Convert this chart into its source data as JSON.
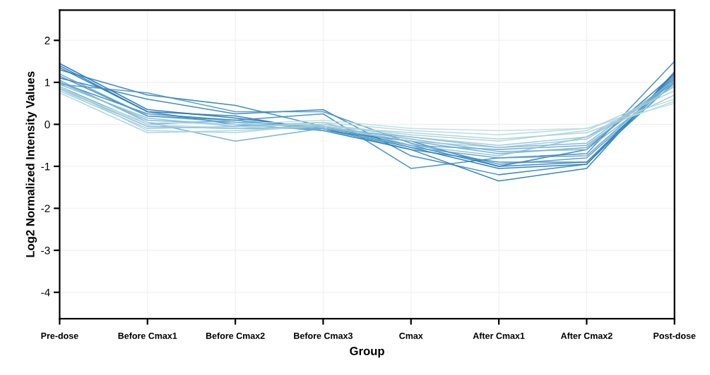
{
  "chart_data": {
    "type": "line",
    "xlabel": "Group",
    "ylabel": "Log2 Normalized Intensity Values",
    "categories": [
      "Pre-dose",
      "Before Cmax1",
      "Before Cmax2",
      "Before Cmax3",
      "Cmax",
      "After Cmax1",
      "After Cmax2",
      "Post-dose"
    ],
    "ylim": [
      -4.63,
      2.72
    ],
    "yticks": [
      -4,
      -3,
      -2,
      -1,
      0,
      1,
      2
    ],
    "grid": true,
    "marker": "none",
    "line_style": "solid",
    "series": [
      {
        "color": "#1f77b4",
        "values": [
          1.45,
          0.35,
          0.15,
          -0.1,
          -0.55,
          -1.05,
          -0.95,
          1.2
        ]
      },
      {
        "color": "#1f77b4",
        "values": [
          1.35,
          0.3,
          0.2,
          -0.15,
          -0.6,
          -1.35,
          -1.05,
          1.25
        ]
      },
      {
        "color": "#2b80bb",
        "values": [
          1.3,
          0.7,
          0.45,
          -0.05,
          -0.5,
          -1.0,
          -0.9,
          1.15
        ]
      },
      {
        "color": "#2b80bb",
        "values": [
          1.1,
          0.6,
          0.25,
          0.35,
          -0.75,
          -1.2,
          -0.95,
          1.1
        ]
      },
      {
        "color": "#3a8ac0",
        "values": [
          1.15,
          0.2,
          0.1,
          0.25,
          -1.05,
          -0.8,
          -0.7,
          1.5
        ]
      },
      {
        "color": "#3a8ac0",
        "values": [
          1.0,
          0.25,
          0.1,
          -0.1,
          -0.6,
          -0.9,
          -0.9,
          1.0
        ]
      },
      {
        "color": "#2b80bb",
        "values": [
          1.4,
          0.3,
          0.0,
          -0.15,
          -0.4,
          -1.0,
          -0.6,
          1.2
        ]
      },
      {
        "color": "#4a94c6",
        "values": [
          0.95,
          0.75,
          0.3,
          0.3,
          -0.45,
          -0.95,
          -0.8,
          1.05
        ]
      },
      {
        "color": "#5aa0cc",
        "values": [
          1.2,
          0.2,
          0.05,
          -0.05,
          -0.55,
          -0.8,
          -0.75,
          1.1
        ]
      },
      {
        "color": "#6aaad0",
        "values": [
          1.05,
          0.05,
          -0.4,
          -0.1,
          -0.4,
          -0.7,
          -0.55,
          1.05
        ]
      },
      {
        "color": "#6aaad0",
        "values": [
          0.9,
          0.0,
          0.1,
          -0.15,
          -0.5,
          -0.6,
          -0.5,
          1.0
        ]
      },
      {
        "color": "#7ab4d4",
        "values": [
          1.0,
          0.1,
          0.0,
          -0.05,
          -0.35,
          -0.65,
          -0.6,
          0.95
        ]
      },
      {
        "color": "#7ab4d4",
        "values": [
          0.85,
          -0.05,
          -0.1,
          -0.1,
          -0.3,
          -0.55,
          -0.45,
          1.05
        ]
      },
      {
        "color": "#8abfd8",
        "values": [
          0.95,
          0.15,
          -0.05,
          0.05,
          -0.5,
          -0.75,
          -0.3,
          0.9
        ]
      },
      {
        "color": "#9ac8da",
        "values": [
          0.8,
          -0.1,
          -0.05,
          0.0,
          -0.3,
          -0.5,
          -0.3,
          0.7
        ]
      },
      {
        "color": "#a8d2dc",
        "values": [
          0.75,
          -0.2,
          -0.15,
          -0.05,
          -0.2,
          -0.35,
          -0.2,
          0.55
        ]
      },
      {
        "color": "#b2d8de",
        "values": [
          0.85,
          0.0,
          -0.1,
          0.05,
          -0.15,
          -0.25,
          -0.1,
          0.6
        ]
      },
      {
        "color": "#a8d2dc",
        "values": [
          0.9,
          -0.15,
          -0.2,
          0.0,
          -0.25,
          -0.4,
          -0.15,
          0.8
        ]
      },
      {
        "color": "#bcdde0",
        "values": [
          0.8,
          0.05,
          0.0,
          0.1,
          -0.1,
          -0.15,
          -0.1,
          0.5
        ]
      },
      {
        "color": "#9ac8da",
        "values": [
          0.85,
          -0.05,
          -0.1,
          -0.05,
          -0.4,
          -0.55,
          -0.35,
          0.9
        ]
      }
    ]
  }
}
